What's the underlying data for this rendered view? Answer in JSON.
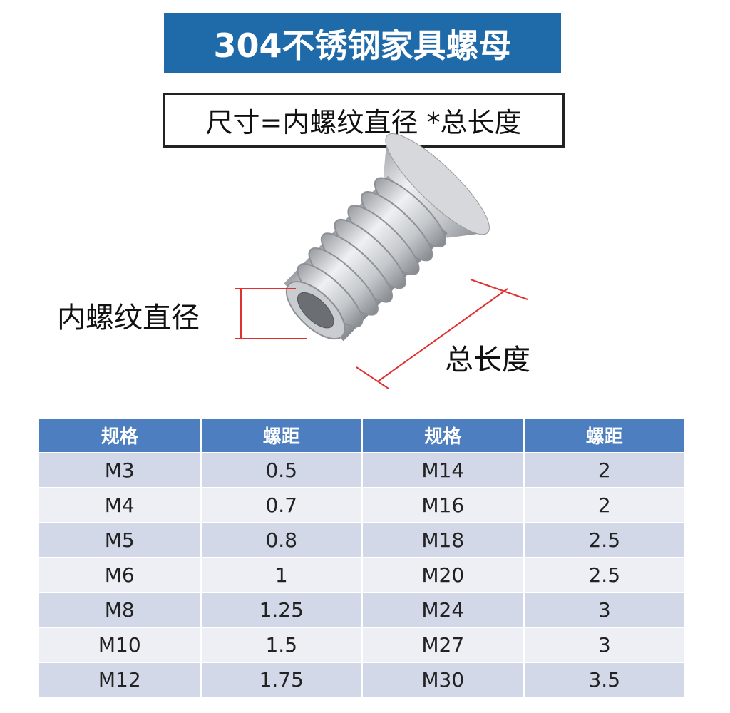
{
  "header": {
    "title": "304不锈钢家具螺母",
    "subtitle": "尺寸=内螺纹直径 *总长度"
  },
  "diagram": {
    "diameter_label": "内螺纹直径",
    "length_label": "总长度"
  },
  "table": {
    "columns": [
      "规格",
      "螺距",
      "规格",
      "螺距"
    ],
    "rows": [
      [
        "M3",
        "0.5",
        "M14",
        "2"
      ],
      [
        "M4",
        "0.7",
        "M16",
        "2"
      ],
      [
        "M5",
        "0.8",
        "M18",
        "2.5"
      ],
      [
        "M6",
        "1",
        "M20",
        "2.5"
      ],
      [
        "M8",
        "1.25",
        "M24",
        "3"
      ],
      [
        "M10",
        "1.5",
        "M27",
        "3"
      ],
      [
        "M12",
        "1.75",
        "M30",
        "3.5"
      ]
    ]
  }
}
